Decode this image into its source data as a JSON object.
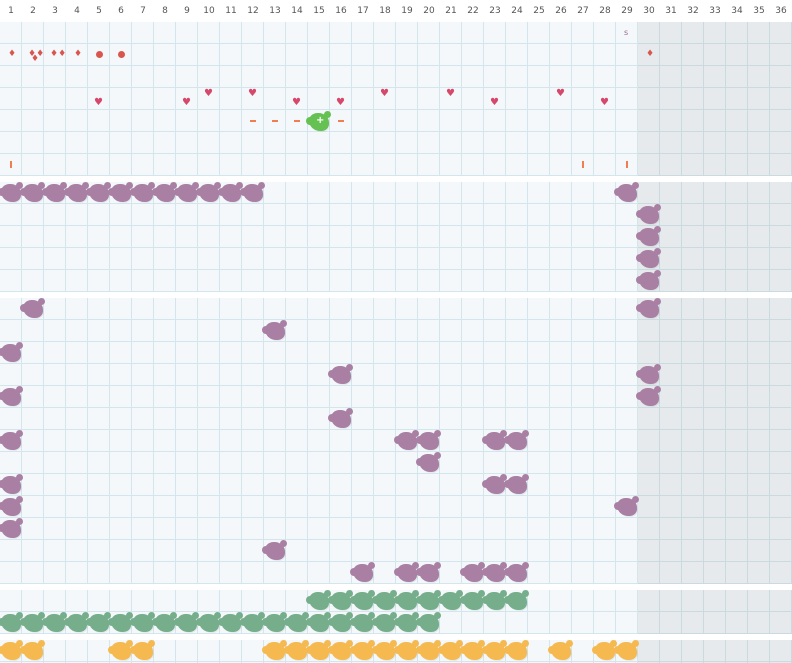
{
  "days": [
    "1",
    "2",
    "3",
    "4",
    "5",
    "6",
    "7",
    "8",
    "9",
    "10",
    "11",
    "12",
    "13",
    "14",
    "15",
    "16",
    "17",
    "18",
    "19",
    "20",
    "21",
    "22",
    "23",
    "24",
    "25",
    "26",
    "27",
    "28",
    "29",
    "30",
    "31",
    "32",
    "33",
    "34",
    "35",
    "36"
  ],
  "colors": {
    "purple": "#a980a3",
    "green": "#76ae8b",
    "yellow": "#f5b950",
    "highlight_green": "#64c152",
    "symptom_red": "#d9564e",
    "heart_pink": "#d6476a",
    "orange_mark": "#ef7f4e",
    "grid_line": "#d3e6ee",
    "cell_bg": "#f4f8fb"
  },
  "top_section": {
    "s_marker": "s",
    "row1_icons": [
      {
        "day": 1,
        "icon": "drop-icon"
      },
      {
        "day": 2,
        "icon": "drops-cluster-icon"
      },
      {
        "day": 3,
        "icon": "double-drop-icon"
      },
      {
        "day": 4,
        "icon": "drop-icon"
      },
      {
        "day": 5,
        "icon": "circle-dot-icon"
      },
      {
        "day": 6,
        "icon": "circle-dot-icon"
      },
      {
        "day": 30,
        "icon": "drop-icon"
      }
    ],
    "row2_hearts_top": [
      10,
      12,
      18,
      21,
      26
    ],
    "row2_hearts_bottom": [
      5,
      9,
      14,
      16,
      23,
      28
    ],
    "row3_dashes": [
      12,
      13,
      14,
      16
    ],
    "row3_highlight_day": 15,
    "row4_bars": [
      1,
      27,
      29
    ]
  },
  "section2": {
    "row1_purple": [
      1,
      2,
      3,
      4,
      5,
      6,
      7,
      8,
      9,
      10,
      11,
      12,
      29
    ],
    "col30_purple_rows": [
      2,
      3,
      4,
      5
    ]
  },
  "section3": {
    "cells": [
      [
        1,
        2
      ],
      [
        1,
        30
      ],
      [
        2,
        13
      ],
      [
        3,
        1
      ],
      [
        4,
        16
      ],
      [
        4,
        30
      ],
      [
        5,
        1
      ],
      [
        5,
        30
      ],
      [
        6,
        16
      ],
      [
        7,
        1
      ],
      [
        7,
        19
      ],
      [
        7,
        20
      ],
      [
        7,
        23
      ],
      [
        7,
        24
      ],
      [
        8,
        20
      ],
      [
        9,
        1
      ],
      [
        9,
        23
      ],
      [
        9,
        24
      ],
      [
        10,
        1
      ],
      [
        10,
        29
      ],
      [
        11,
        1
      ],
      [
        12,
        13
      ],
      [
        13,
        17
      ],
      [
        13,
        19
      ],
      [
        13,
        20
      ],
      [
        13,
        22
      ],
      [
        13,
        23
      ],
      [
        13,
        24
      ]
    ]
  },
  "section4": {
    "row1_green": [
      15,
      16,
      17,
      18,
      19,
      20,
      21,
      22,
      23,
      24
    ],
    "row2_green": [
      1,
      2,
      3,
      4,
      5,
      6,
      7,
      8,
      9,
      10,
      11,
      12,
      13,
      14,
      15,
      16,
      17,
      18,
      19,
      20
    ]
  },
  "section5": {
    "row1_yellow": [
      1,
      2,
      6,
      7,
      13,
      14,
      15,
      16,
      17,
      18,
      19,
      20,
      21,
      22,
      23,
      24,
      26,
      28,
      29
    ]
  }
}
